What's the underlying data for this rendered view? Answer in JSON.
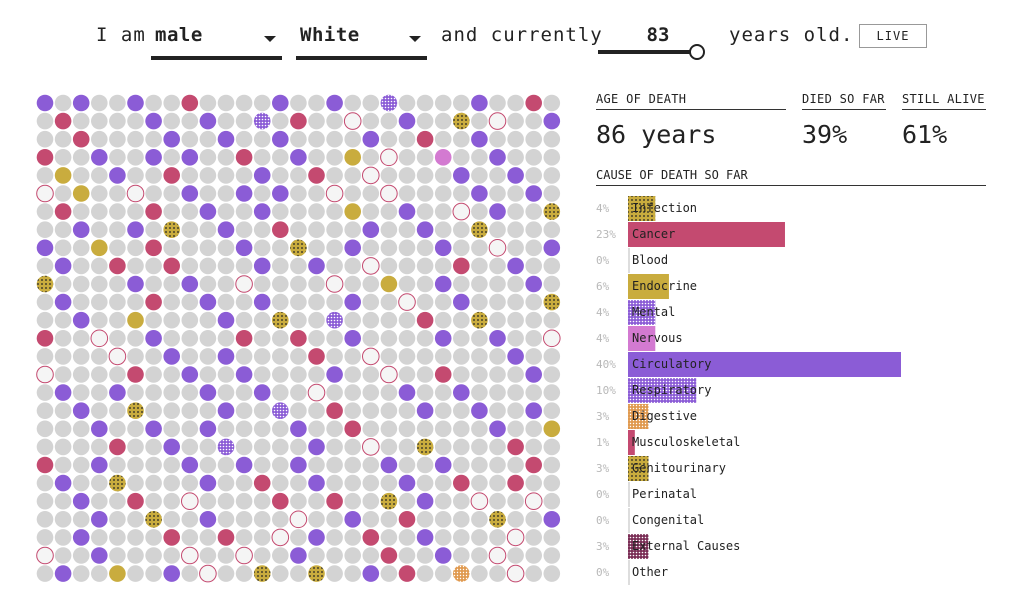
{
  "header": {
    "prefix": "I am",
    "sex": "male",
    "race": "White",
    "middle": "and currently",
    "age": "83",
    "suffix": "years old.",
    "live_label": "LIVE"
  },
  "stats": {
    "age_label": "AGE OF DEATH",
    "age_value": "86 years",
    "died_label": "DIED SO FAR",
    "died_value": "39%",
    "alive_label": "STILL ALIVE",
    "alive_value": "61%"
  },
  "colors": {
    "alive": "#d3d3d3",
    "Infection": "#c9ac3e",
    "Cancer": "#c44a70",
    "Blood": "#e0a0b0",
    "Endocrine": "#c9ac3e",
    "Mental": "#8b5cd6",
    "Nervous": "#d37ad1",
    "Circulatory": "#8b5cd6",
    "Respiratory": "#8b5cd6",
    "Digestive": "#e09a50",
    "Musculoskeletal": "#c44a70",
    "Genitourinary": "#c9ac3e",
    "Perinatal": "#cccccc",
    "Congenital": "#cccccc",
    "External Causes": "#7a2d55",
    "Other": "#cccccc"
  },
  "grid": {
    "cols": 29,
    "rows": 27,
    "total": 783,
    "cells": "VMRVRRVMVVRPRVVFIRVCCCCCFRVVFFRTIVFRTVFRRRVFFRCVVFRDFRCVRPRVVRFVVFIRVCVCVFCCVFEVVRCCRVVMCRVRVFRCVVCRVVRVCVCVCFVFRVPVRCMCRVVCRVVVVCVNTVPRRVVCFGCCVFCMVCCVCVGCPVCVCVRRVVCVVRVNVFRVCVVRVVVCFPFVRVRCRDCVCVRPVCVCCMVRRVRVFCRCCVVRVCVCFVRRVFVVVCGVFRVVIRCVRVVRVVRVVCRRFVCFVCVRVRVMCVCVVRVVVFVRVCRRVVRRVRVRVCVVCFVVCVIRFVCVRRFVVFCRVVRCRCRRRVRGNCRMCRVVVVFRRRVVCVVVVRCCCVVVRFVRVVCVRVVVVCRVNVVVRPCVVCDCVCRVVCVVMRVCCVVRVRVCDRCRCVRVVRMVVVRVRVCVCRRVVRVRVVVCVGRVVVIVRRVRVVVVVRRRCVCFPRCRRCVVVVDVVGVCPVRVRRRRVPRVVRCCVVVVVRCVVRVCFVRVRRVVVMRRVVVGRIVVRVVCVVRVVCVRVVVRVVVRVVVVVVVVVVVVVVVVVVVVVVVVVVVCVVVFCVVRRVRVRVVVRCVCGCRCVRVCVCRVVCRVVPCFVCRRCCVCVCRCCVCVVVVRRVVVVCVVVCRRRVVRFVVVVVGRVRCVRRRVVRVRCCVVRVVFVCVVVVRVRRVVFVVRVRVVRCRVVVVVVVVRCCVCVVVVRVVRVVVRVCVVRRVVVVVRVRVVVCVVVVVVVVVVRVVVVVVVVVVVVVVVVVVVVVVVVVVVVVVVVVVVVVVVVVVVVVVVVVVVVVVVVVVVVVVVVVVVV"
  },
  "cause_title": "CAUSE OF DEATH SO FAR",
  "chart_data": {
    "type": "bar",
    "title": "CAUSE OF DEATH SO FAR",
    "categories": [
      "Infection",
      "Cancer",
      "Blood",
      "Endocrine",
      "Mental",
      "Nervous",
      "Circulatory",
      "Respiratory",
      "Digestive",
      "Musculoskeletal",
      "Genitourinary",
      "Perinatal",
      "Congenital",
      "External Causes",
      "Other"
    ],
    "values": [
      4,
      23,
      0,
      6,
      4,
      4,
      40,
      10,
      3,
      1,
      3,
      0,
      0,
      3,
      0
    ],
    "value_labels": [
      "4%",
      "23%",
      "0%",
      "6%",
      "4%",
      "4%",
      "40%",
      "10%",
      "3%",
      "1%",
      "3%",
      "0%",
      "0%",
      "3%",
      "0%"
    ],
    "unit": "%",
    "xlim": [
      0,
      40
    ]
  }
}
